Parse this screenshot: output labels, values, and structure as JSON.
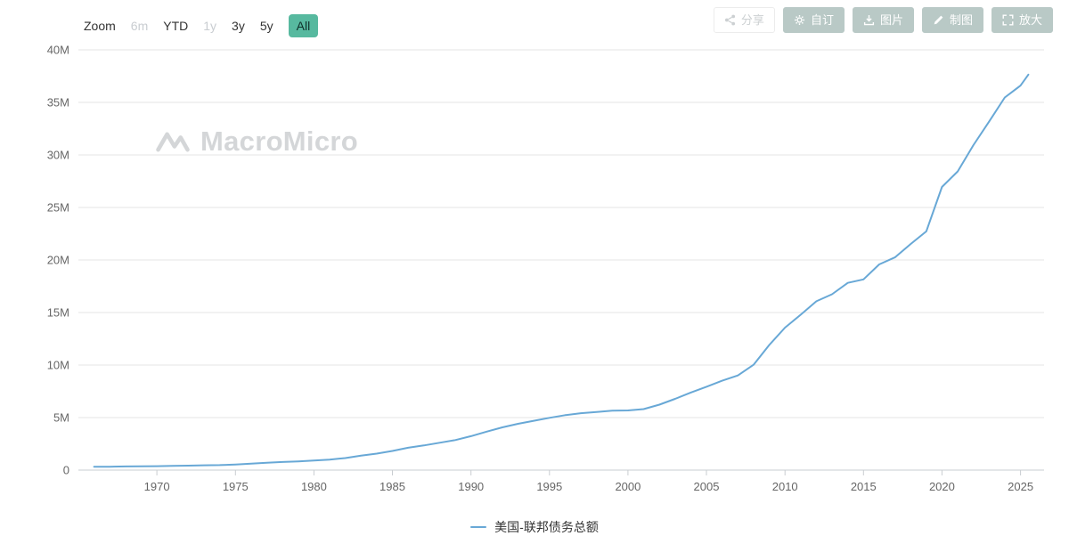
{
  "colors": {
    "accent_teal": "#57b99f",
    "line_blue": "#68a8d6",
    "grid": "#e6e6e6",
    "axis": "#c9cdd1",
    "label": "#666666"
  },
  "toolbar": {
    "zoom_label": "Zoom",
    "ranges": [
      {
        "label": "6m",
        "state": "disabled"
      },
      {
        "label": "YTD",
        "state": "normal"
      },
      {
        "label": "1y",
        "state": "disabled"
      },
      {
        "label": "3y",
        "state": "normal"
      },
      {
        "label": "5y",
        "state": "normal"
      },
      {
        "label": "All",
        "state": "selected"
      }
    ],
    "actions": [
      {
        "label": "分享",
        "icon": "share-icon"
      },
      {
        "label": "自订",
        "icon": "gear-icon"
      },
      {
        "label": "图片",
        "icon": "download-icon"
      },
      {
        "label": "制图",
        "icon": "pencil-icon"
      },
      {
        "label": "放大",
        "icon": "expand-icon"
      }
    ]
  },
  "watermark": {
    "text": "MacroMicro",
    "icon": "macromicro-logo-icon"
  },
  "legend": {
    "series_label": "美国-联邦债务总额",
    "color": "#68a8d6"
  },
  "chart_data": {
    "type": "line",
    "title": "",
    "legend_position": "bottom",
    "grid": "horizontal",
    "x_range": [
      1965,
      2026.5
    ],
    "y_range": [
      0,
      40000000
    ],
    "y_ticks": [
      {
        "value": 0,
        "label": "0"
      },
      {
        "value": 5000000,
        "label": "5M"
      },
      {
        "value": 10000000,
        "label": "10M"
      },
      {
        "value": 15000000,
        "label": "15M"
      },
      {
        "value": 20000000,
        "label": "20M"
      },
      {
        "value": 25000000,
        "label": "25M"
      },
      {
        "value": 30000000,
        "label": "30M"
      },
      {
        "value": 35000000,
        "label": "35M"
      },
      {
        "value": 40000000,
        "label": "40M"
      }
    ],
    "x_ticks": [
      1970,
      1975,
      1980,
      1985,
      1990,
      1995,
      2000,
      2005,
      2010,
      2015,
      2020,
      2025
    ],
    "series": [
      {
        "name": "美国-联邦债务总额",
        "color": "#68a8d6",
        "unit": "M",
        "x": [
          1966,
          1967,
          1968,
          1969,
          1970,
          1971,
          1972,
          1973,
          1974,
          1975,
          1976,
          1977,
          1978,
          1979,
          1980,
          1981,
          1982,
          1983,
          1984,
          1985,
          1986,
          1987,
          1988,
          1989,
          1990,
          1991,
          1992,
          1993,
          1994,
          1995,
          1996,
          1997,
          1998,
          1999,
          2000,
          2001,
          2002,
          2003,
          2004,
          2005,
          2006,
          2007,
          2008,
          2009,
          2010,
          2011,
          2012,
          2013,
          2014,
          2015,
          2016,
          2017,
          2018,
          2019,
          2020,
          2021,
          2022,
          2023,
          2024,
          2025,
          2025.5
        ],
        "values": [
          320000,
          326000,
          348000,
          354000,
          371000,
          398000,
          427000,
          458000,
          475000,
          533000,
          620000,
          699000,
          772000,
          827000,
          908000,
          998000,
          1142000,
          1377000,
          1572000,
          1823000,
          2125000,
          2350000,
          2602000,
          2857000,
          3233000,
          3665000,
          4065000,
          4411000,
          4693000,
          4974000,
          5225000,
          5413000,
          5526000,
          5656000,
          5674000,
          5807000,
          6228000,
          6783000,
          7379000,
          7933000,
          8507000,
          9008000,
          10025000,
          11910000,
          13562000,
          14790000,
          16066000,
          16738000,
          17824000,
          18151000,
          19573000,
          20245000,
          21516000,
          22719000,
          26945000,
          28429000,
          30929000,
          33167000,
          35465000,
          36600000,
          37640000
        ]
      }
    ]
  }
}
